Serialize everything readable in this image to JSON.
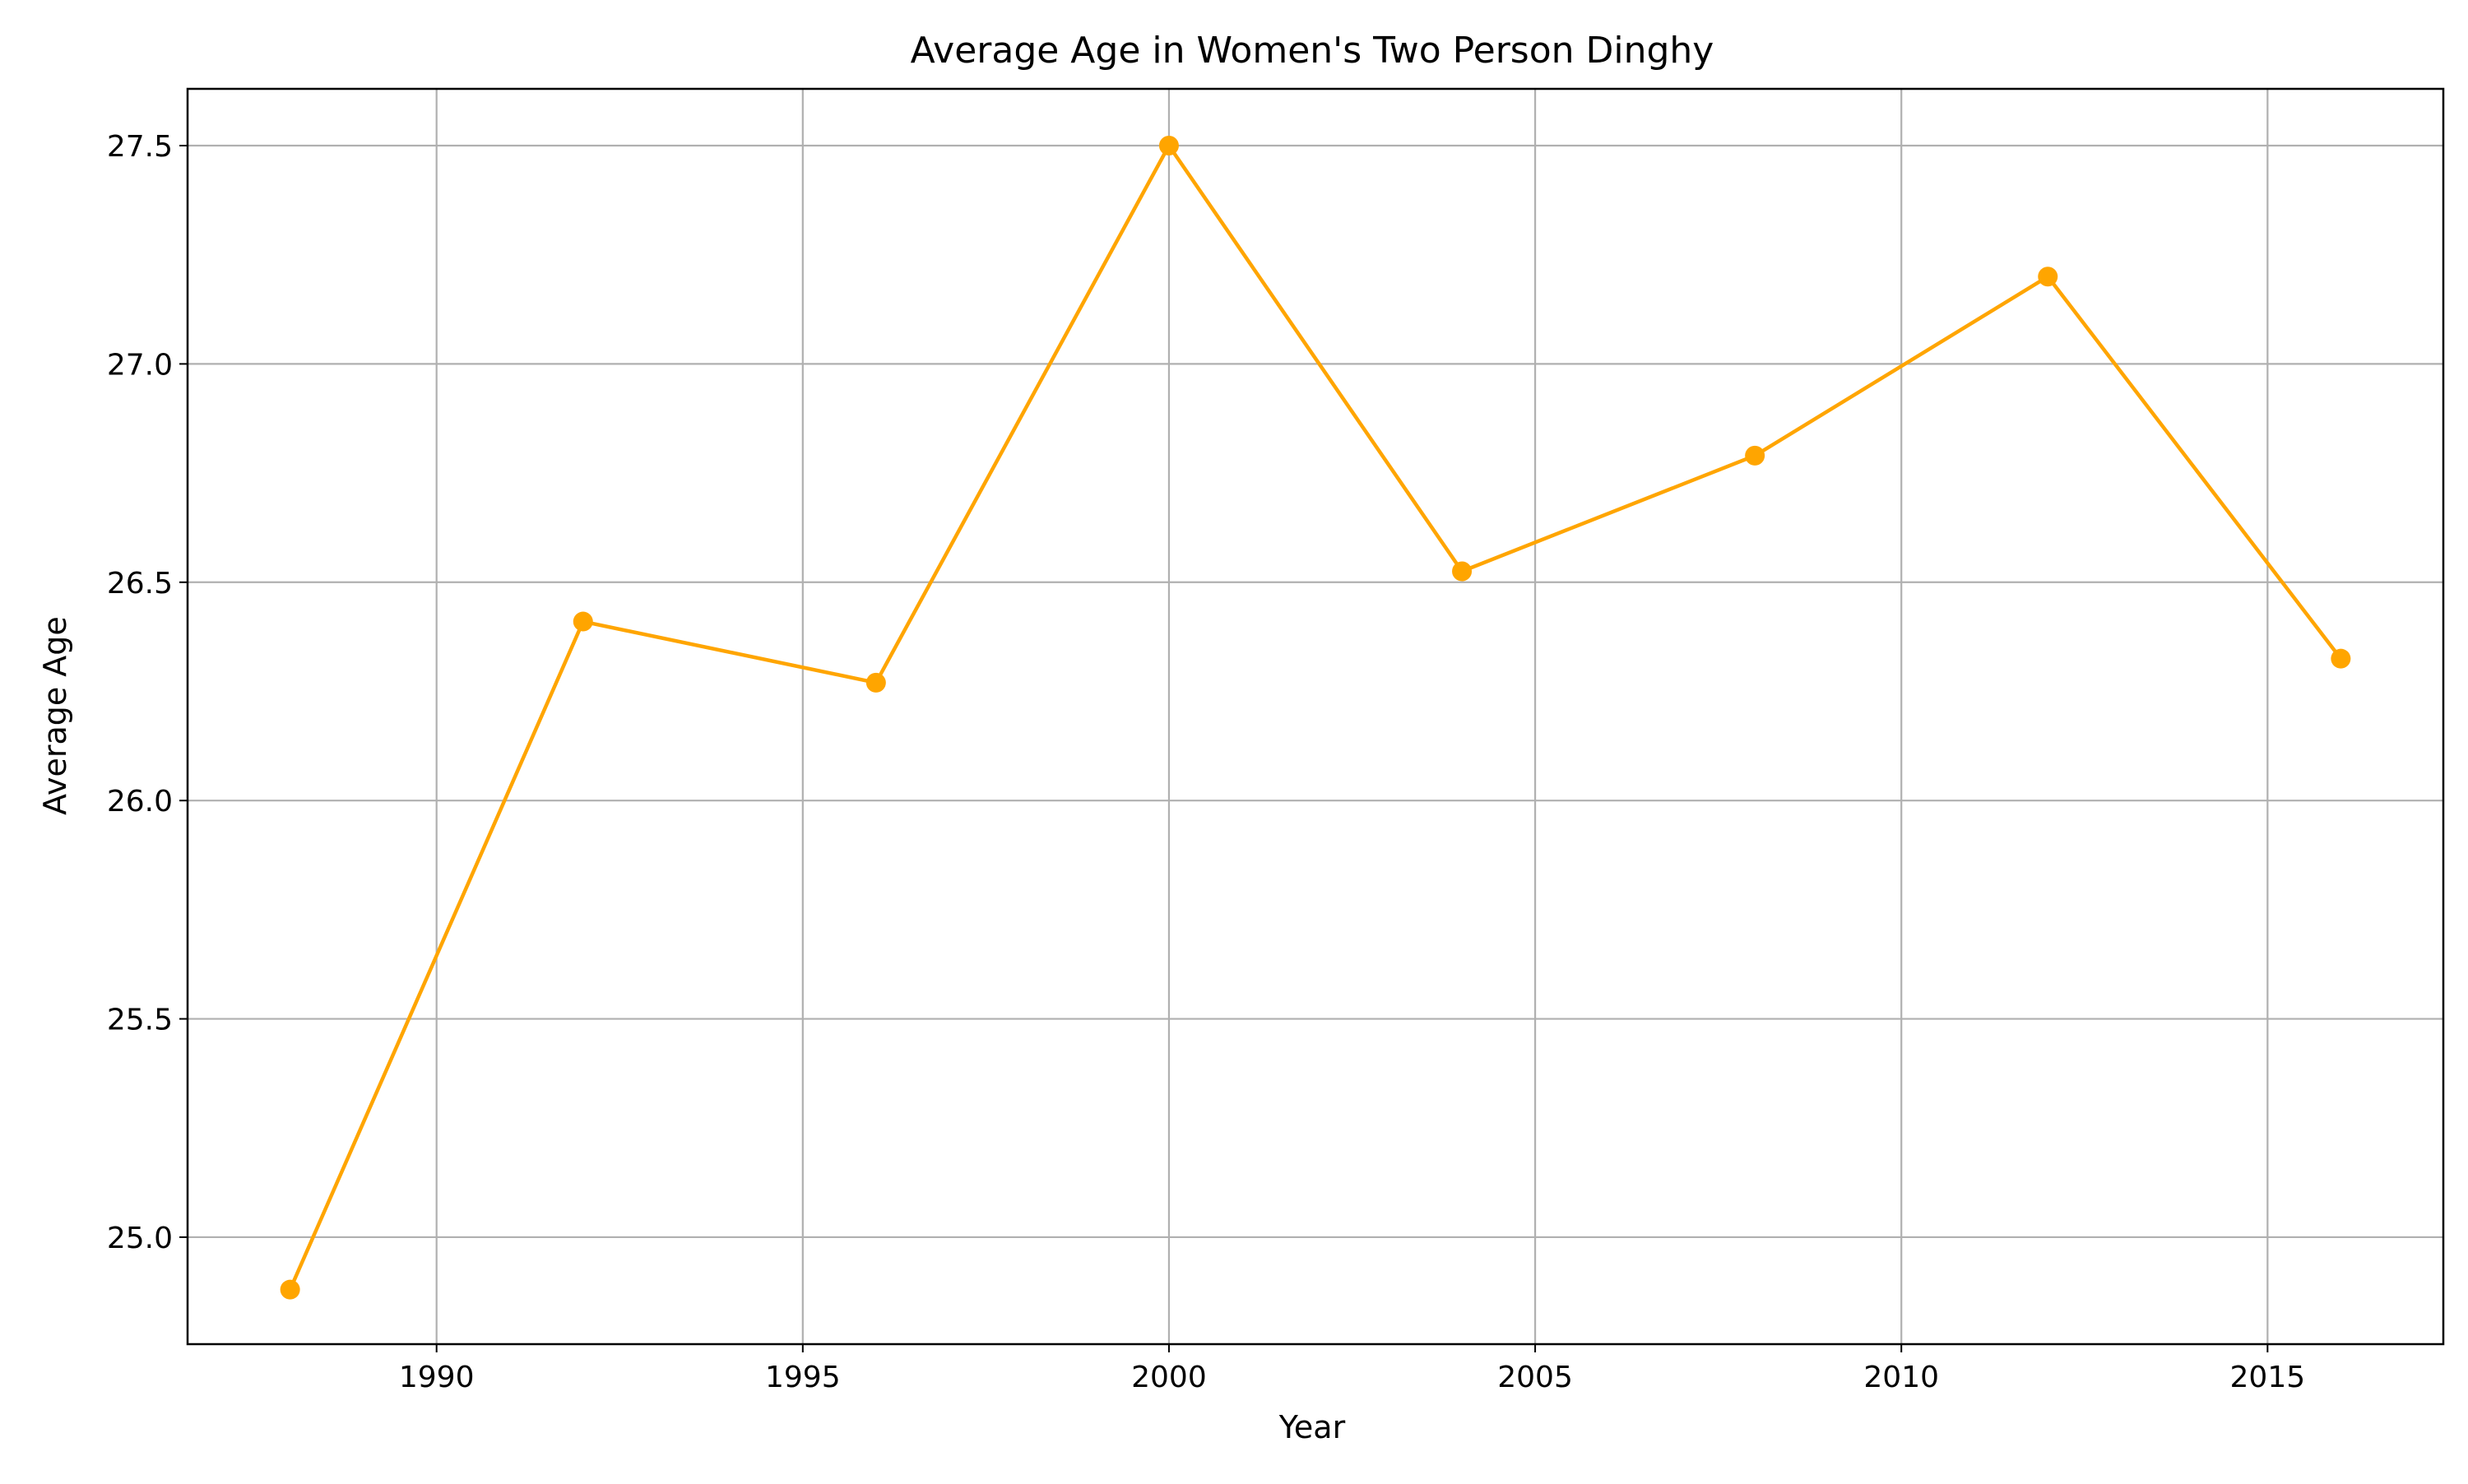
{
  "chart_data": {
    "type": "line",
    "title": "Average Age in Women's Two Person Dinghy",
    "xlabel": "Year",
    "ylabel": "Average Age",
    "xlim": [
      1986.6,
      2017.4
    ],
    "ylim": [
      24.755,
      27.63
    ],
    "xticks": [
      1990,
      1995,
      2000,
      2005,
      2010,
      2015
    ],
    "yticks": [
      25.0,
      25.5,
      26.0,
      26.5,
      27.0,
      27.5
    ],
    "xtick_labels": [
      "1990",
      "1995",
      "2000",
      "2005",
      "2010",
      "2015"
    ],
    "ytick_labels": [
      "25.0",
      "25.5",
      "26.0",
      "26.5",
      "27.0",
      "27.5"
    ],
    "grid": true,
    "series": [
      {
        "color": "#ffa500",
        "marker": "circle",
        "x": [
          1988,
          1992,
          1996,
          2000,
          2004,
          2008,
          2012,
          2016
        ],
        "y": [
          24.88,
          26.41,
          26.27,
          27.5,
          26.525,
          26.79,
          27.2,
          26.325
        ]
      }
    ]
  }
}
